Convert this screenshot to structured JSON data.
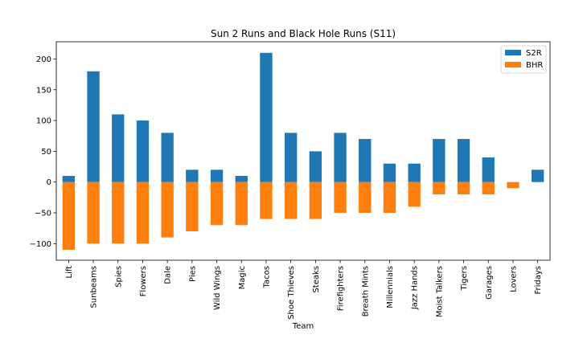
{
  "chart_data": {
    "type": "bar",
    "title": "Sun 2 Runs and Black Hole Runs (S11)",
    "xlabel": "Team",
    "ylabel": "",
    "ylim": [
      -127,
      228
    ],
    "yticks": [
      -100,
      -50,
      0,
      50,
      100,
      150,
      200
    ],
    "categories": [
      "Lift",
      "Sunbeams",
      "Spies",
      "Flowers",
      "Dale",
      "Pies",
      "Wild Wings",
      "Magic",
      "Tacos",
      "Shoe Thieves",
      "Steaks",
      "Firefighters",
      "Breath Mints",
      "Millennials",
      "Jazz Hands",
      "Moist Talkers",
      "Tigers",
      "Garages",
      "Lovers",
      "Fridays"
    ],
    "series": [
      {
        "name": "S2R",
        "color": "#1f77b4",
        "values": [
          10,
          180,
          110,
          100,
          80,
          20,
          20,
          10,
          210,
          80,
          50,
          80,
          70,
          30,
          30,
          70,
          70,
          40,
          0,
          20
        ]
      },
      {
        "name": "BHR",
        "color": "#ff7f0e",
        "values": [
          -110,
          -100,
          -100,
          -100,
          -90,
          -80,
          -70,
          -70,
          -60,
          -60,
          -60,
          -50,
          -50,
          -50,
          -40,
          -20,
          -20,
          -20,
          -10,
          0
        ]
      }
    ],
    "stacked": true,
    "grid": false,
    "legend": "top-right"
  }
}
